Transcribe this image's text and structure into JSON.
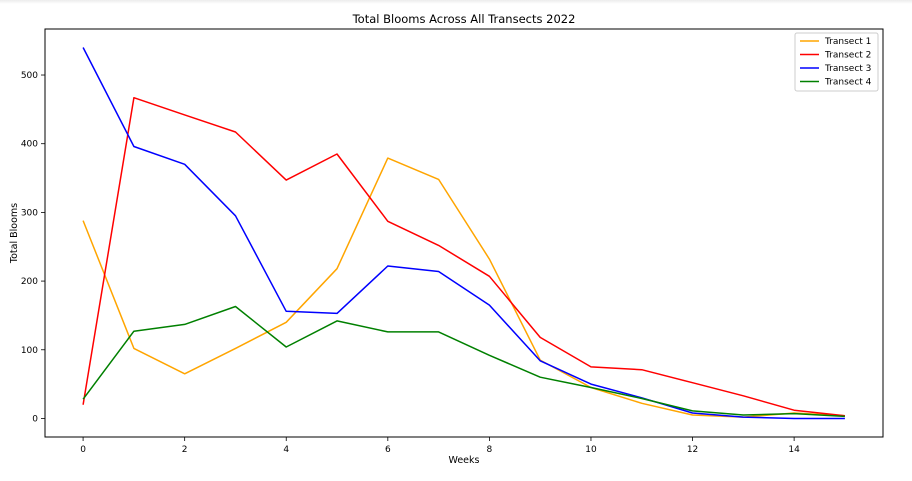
{
  "chart_data": {
    "type": "line",
    "title": "Total Blooms Across All Transects 2022",
    "xlabel": "Weeks",
    "ylabel": "Total Blooms",
    "xlim": [
      -0.75,
      15.75
    ],
    "ylim": [
      -27,
      567
    ],
    "xticks": [
      0,
      2,
      4,
      6,
      8,
      10,
      12,
      14
    ],
    "yticks": [
      0,
      100,
      200,
      300,
      400,
      500
    ],
    "grid": false,
    "legend_position": "top-right",
    "x": [
      0,
      1,
      2,
      3,
      4,
      5,
      6,
      7,
      8,
      9,
      10,
      11,
      12,
      13,
      14,
      15
    ],
    "series": [
      {
        "name": "Transect 1",
        "color": "#ffa500",
        "values": [
          288,
          102,
          65,
          102,
          140,
          218,
          379,
          348,
          232,
          85,
          45,
          22,
          5,
          2,
          8,
          4
        ]
      },
      {
        "name": "Transect 2",
        "color": "#ff0000",
        "values": [
          20,
          467,
          442,
          417,
          347,
          385,
          287,
          252,
          207,
          118,
          75,
          71,
          52,
          33,
          12,
          4
        ]
      },
      {
        "name": "Transect 3",
        "color": "#0000ff",
        "values": [
          540,
          396,
          370,
          295,
          156,
          153,
          222,
          214,
          165,
          84,
          50,
          30,
          8,
          2,
          0,
          0
        ]
      },
      {
        "name": "Transect 4",
        "color": "#008000",
        "values": [
          28,
          127,
          137,
          163,
          104,
          142,
          126,
          126,
          92,
          60,
          45,
          29,
          11,
          5,
          7,
          3
        ]
      }
    ]
  }
}
